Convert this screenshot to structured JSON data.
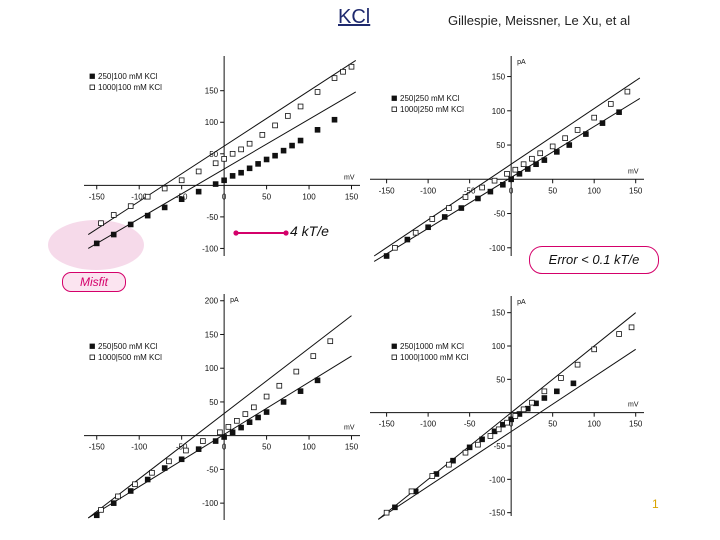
{
  "header": {
    "title": "KCl",
    "authors": "Gillespie, Meissner, Le Xu, et al"
  },
  "annotations": {
    "kt": "4 kT/e",
    "misfit": "Misfit",
    "error": "Error < 0.1 kT/e"
  },
  "slide_number": "1",
  "colors": {
    "accent": "#d4006a",
    "misfit_fill": "#f4d3e6",
    "title": "#1f2a6e"
  },
  "chart_data": [
    {
      "type": "scatter",
      "xunit": "mV",
      "yunit": "",
      "xlim": [
        -165,
        160
      ],
      "ylim": [
        -112,
        205
      ],
      "xticks": [
        -150,
        -100,
        -50,
        0,
        50,
        100,
        150
      ],
      "yticks": [
        -100,
        -50,
        50,
        100,
        150
      ],
      "tick_labels_x": [
        "-150",
        "-100",
        "-50",
        "0",
        "50",
        "100",
        "150"
      ],
      "tick_labels_y": [
        "-100",
        "-50",
        "50",
        "100",
        "150"
      ],
      "legend": "top-left",
      "series": [
        {
          "name": "250|100 mM KCl",
          "marker": "filled-square",
          "x": [
            -150,
            -130,
            -110,
            -90,
            -70,
            -50,
            -30,
            -10,
            0,
            10,
            20,
            30,
            40,
            50,
            60,
            70,
            80,
            90,
            110,
            130
          ],
          "y": [
            -92,
            -78,
            -62,
            -48,
            -35,
            -22,
            -10,
            2,
            8,
            15,
            20,
            27,
            34,
            41,
            47,
            55,
            63,
            71,
            88,
            104
          ],
          "fit": [
            [
              -160,
              -100
            ],
            [
              155,
              148
            ]
          ]
        },
        {
          "name": "1000|100 mM KCl",
          "marker": "open-square",
          "x": [
            -145,
            -130,
            -110,
            -90,
            -70,
            -50,
            -30,
            -10,
            0,
            10,
            20,
            30,
            45,
            60,
            75,
            90,
            110,
            130,
            140,
            150
          ],
          "y": [
            -60,
            -47,
            -33,
            -18,
            -5,
            8,
            22,
            35,
            42,
            50,
            57,
            66,
            80,
            95,
            110,
            125,
            148,
            170,
            180,
            188
          ],
          "fit": [
            [
              -160,
              -78
            ],
            [
              155,
              198
            ]
          ]
        }
      ]
    },
    {
      "type": "scatter",
      "xunit": "mV",
      "yunit": "pA",
      "xlim": [
        -170,
        160
      ],
      "ylim": [
        -112,
        180
      ],
      "xticks": [
        -150,
        -100,
        -50,
        0,
        50,
        100,
        150
      ],
      "yticks": [
        -100,
        -50,
        50,
        100,
        150
      ],
      "tick_labels_x": [
        "-150",
        "-100",
        "-50",
        "0",
        "50",
        "100",
        "150"
      ],
      "tick_labels_y": [
        "-100",
        "-50",
        "50",
        "100",
        "150"
      ],
      "legend": "top-left",
      "series": [
        {
          "name": "250|250 mM KCl",
          "marker": "filled-square",
          "x": [
            -150,
            -125,
            -100,
            -80,
            -60,
            -40,
            -25,
            -10,
            0,
            10,
            20,
            30,
            40,
            55,
            70,
            90,
            110,
            130
          ],
          "y": [
            -112,
            -88,
            -70,
            -55,
            -42,
            -28,
            -18,
            -8,
            0,
            8,
            15,
            22,
            28,
            40,
            50,
            66,
            82,
            98
          ],
          "fit": [
            [
              -165,
              -120
            ],
            [
              155,
              118
            ]
          ]
        },
        {
          "name": "1000|250 mM KCl",
          "marker": "open-square",
          "x": [
            -140,
            -115,
            -95,
            -75,
            -55,
            -35,
            -20,
            -5,
            5,
            15,
            25,
            35,
            50,
            65,
            80,
            100,
            120,
            140
          ],
          "y": [
            -100,
            -78,
            -58,
            -42,
            -26,
            -12,
            -2,
            8,
            14,
            22,
            30,
            38,
            48,
            60,
            72,
            90,
            110,
            128
          ],
          "fit": [
            [
              -165,
              -112
            ],
            [
              155,
              148
            ]
          ]
        }
      ]
    },
    {
      "type": "scatter",
      "xunit": "mV",
      "yunit": "pA",
      "xlim": [
        -165,
        160
      ],
      "ylim": [
        -125,
        210
      ],
      "xticks": [
        -150,
        -100,
        -50,
        0,
        50,
        100,
        150
      ],
      "yticks": [
        -100,
        -50,
        50,
        100,
        150,
        200
      ],
      "tick_labels_x": [
        "-150",
        "-100",
        "-50",
        "0",
        "50",
        "100",
        "150"
      ],
      "tick_labels_y": [
        "-100",
        "-50",
        "50",
        "100",
        "150",
        "200"
      ],
      "legend": "top-left",
      "series": [
        {
          "name": "250|500 mM KCl",
          "marker": "filled-square",
          "x": [
            -150,
            -130,
            -110,
            -90,
            -70,
            -50,
            -30,
            -10,
            0,
            10,
            20,
            30,
            40,
            50,
            70,
            90,
            110
          ],
          "y": [
            -118,
            -100,
            -82,
            -65,
            -48,
            -35,
            -20,
            -8,
            -2,
            5,
            12,
            20,
            27,
            35,
            50,
            66,
            82
          ],
          "fit": [
            [
              -160,
              -122
            ],
            [
              150,
              118
            ]
          ]
        },
        {
          "name": "1000|500 mM KCl",
          "marker": "open-square",
          "x": [
            -145,
            -125,
            -105,
            -85,
            -65,
            -45,
            -25,
            -5,
            5,
            15,
            25,
            35,
            50,
            65,
            85,
            105,
            125
          ],
          "y": [
            -110,
            -90,
            -72,
            -55,
            -38,
            -22,
            -8,
            5,
            13,
            22,
            32,
            42,
            58,
            74,
            95,
            118,
            140
          ],
          "fit": [
            [
              -160,
              -122
            ],
            [
              150,
              178
            ]
          ]
        }
      ]
    },
    {
      "type": "scatter",
      "xunit": "mV",
      "yunit": "pA",
      "xlim": [
        -170,
        160
      ],
      "ylim": [
        -155,
        175
      ],
      "xticks": [
        -150,
        -100,
        -50,
        0,
        50,
        100,
        150
      ],
      "yticks": [
        -150,
        -100,
        -50,
        50,
        100,
        150
      ],
      "tick_labels_x": [
        "-150",
        "-100",
        "-50",
        "0",
        "50",
        "100",
        "150"
      ],
      "tick_labels_y": [
        "-150",
        "-100",
        "-50",
        "50",
        "100",
        "150"
      ],
      "legend": "top-left",
      "series": [
        {
          "name": "250|1000 mM KCl",
          "marker": "filled-square",
          "x": [
            -140,
            -115,
            -90,
            -70,
            -50,
            -35,
            -20,
            -10,
            0,
            10,
            20,
            30,
            40,
            55,
            75
          ],
          "y": [
            -142,
            -118,
            -92,
            -72,
            -52,
            -40,
            -28,
            -18,
            -10,
            -2,
            6,
            14,
            22,
            32,
            44
          ],
          "fit": [
            [
              -160,
              -160
            ],
            [
              150,
              95
            ]
          ]
        },
        {
          "name": "1000|1000 mM KCl",
          "marker": "open-square",
          "x": [
            -150,
            -120,
            -95,
            -75,
            -55,
            -40,
            -25,
            -15,
            -5,
            5,
            15,
            25,
            40,
            60,
            80,
            100,
            130,
            145
          ],
          "y": [
            -150,
            -118,
            -95,
            -78,
            -60,
            -48,
            -35,
            -25,
            -15,
            -5,
            5,
            15,
            32,
            52,
            72,
            95,
            118,
            128
          ],
          "fit": [
            [
              -160,
              -160
            ],
            [
              150,
              150
            ]
          ]
        }
      ]
    }
  ]
}
